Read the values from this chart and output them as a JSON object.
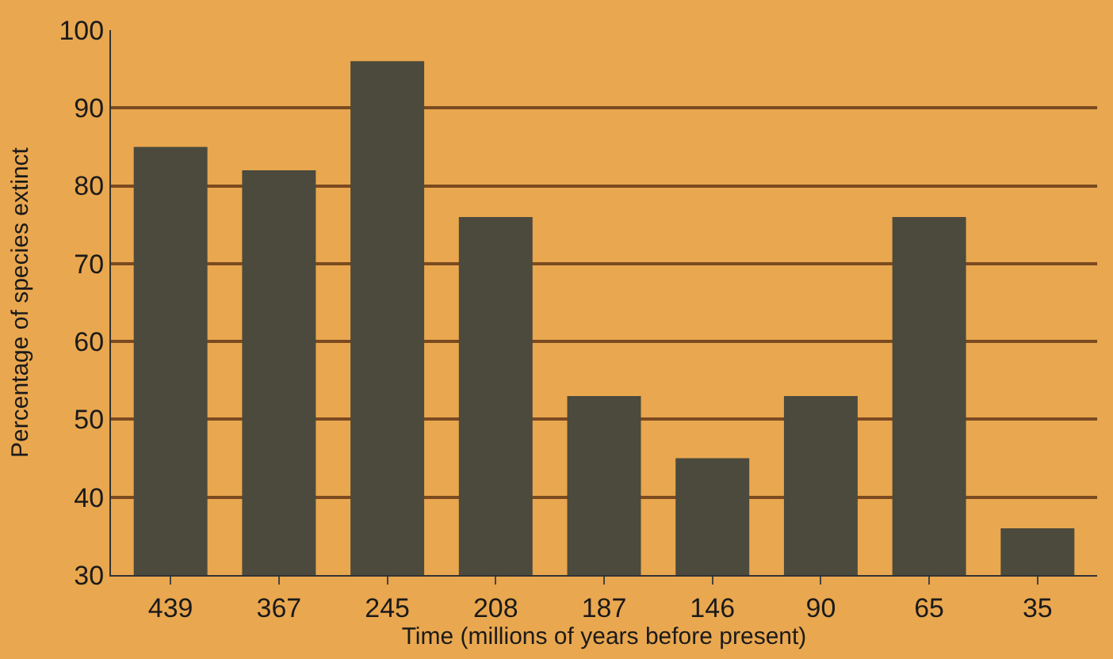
{
  "chart_data": {
    "type": "bar",
    "xlabel": "Time (millions of years before present)",
    "ylabel": "Percentage of species extinct",
    "categories": [
      "439",
      "367",
      "245",
      "208",
      "187",
      "146",
      "90",
      "65",
      "35"
    ],
    "values": [
      85,
      82,
      96,
      76,
      53,
      45,
      53,
      76,
      36
    ],
    "color": "#4b4a3c",
    "ylim": [
      30,
      100
    ],
    "yticks": [
      30,
      40,
      50,
      60,
      70,
      80,
      90,
      100
    ],
    "grid": "y"
  }
}
